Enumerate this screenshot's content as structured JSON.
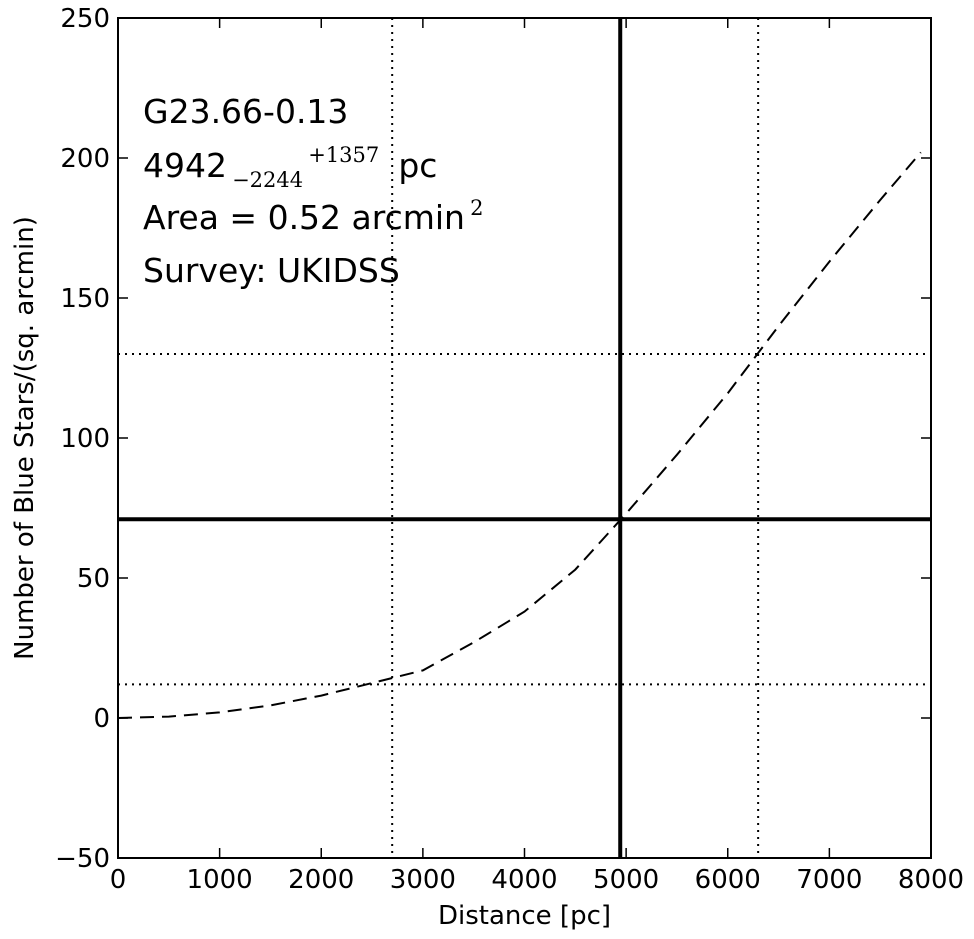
{
  "chart_data": {
    "type": "line",
    "xlabel": "Distance [pc]",
    "ylabel": "Number of Blue Stars/(sq. arcmin)",
    "xlim": [
      0,
      8000
    ],
    "ylim": [
      -50,
      250
    ],
    "xticks": [
      0,
      1000,
      2000,
      3000,
      4000,
      5000,
      6000,
      7000,
      8000
    ],
    "yticks": [
      -50,
      0,
      50,
      100,
      150,
      200,
      250
    ],
    "xtick_labels": [
      "0",
      "1000",
      "2000",
      "3000",
      "4000",
      "5000",
      "6000",
      "7000",
      "8000"
    ],
    "ytick_labels": [
      "−50",
      "0",
      "50",
      "100",
      "150",
      "200",
      "250"
    ],
    "grid": false,
    "series": [
      {
        "style": "dashed",
        "x": [
          0,
          500,
          1000,
          1500,
          2000,
          2500,
          3000,
          3500,
          4000,
          4500,
          5000,
          5500,
          6000,
          6500,
          7000,
          7500,
          7900
        ],
        "y": [
          0,
          0.5,
          2,
          4.5,
          8,
          12.5,
          17,
          27,
          38,
          53,
          73,
          94,
          116,
          140,
          163,
          185,
          202
        ]
      }
    ],
    "hlines": [
      {
        "y": 71,
        "style": "solid"
      },
      {
        "y": 130,
        "style": "dotted"
      },
      {
        "y": 12,
        "style": "dotted"
      }
    ],
    "vlines": [
      {
        "x": 4942,
        "style": "solid"
      },
      {
        "x": 2698,
        "style": "dotted"
      },
      {
        "x": 6299,
        "style": "dotted"
      }
    ],
    "annotations": {
      "source_name": "G23.66-0.13",
      "distance_value": "4942",
      "distance_lower": "−2244",
      "distance_upper": "+1357",
      "distance_unit": "pc",
      "area_text": "Area = 0.52 arcmin",
      "area_exponent": "2",
      "survey_text": "Survey: UKIDSS"
    }
  }
}
